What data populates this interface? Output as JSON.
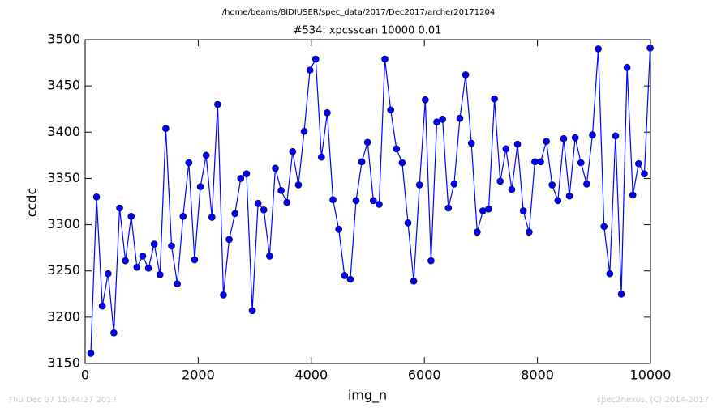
{
  "chart_data": {
    "type": "line",
    "header": "/home/beams/8IDIUSER/spec_data/2017/Dec2017/archer20171204",
    "title": "#534: xpcsscan 10000 0.01",
    "x_label": "img_n",
    "y_label": "ccdc",
    "footer_left": "Thu Dec 07 15:44:27 2017",
    "footer_right": "spec2nexus, (C) 2014-2017",
    "xlim": [
      0,
      10000
    ],
    "xticks": [
      0,
      2000,
      4000,
      6000,
      8000,
      10000
    ],
    "ylim": [
      3150,
      3500
    ],
    "yticks": [
      3150,
      3200,
      3250,
      3300,
      3350,
      3400,
      3450,
      3500
    ],
    "x": [
      100,
      202,
      304,
      406,
      508,
      610,
      712,
      814,
      916,
      1018,
      1120,
      1222,
      1324,
      1426,
      1528,
      1630,
      1732,
      1834,
      1936,
      2038,
      2140,
      2242,
      2344,
      2446,
      2548,
      2650,
      2752,
      2854,
      2956,
      3058,
      3160,
      3262,
      3364,
      3466,
      3568,
      3670,
      3772,
      3874,
      3976,
      4078,
      4180,
      4282,
      4384,
      4486,
      4588,
      4690,
      4792,
      4894,
      4996,
      5098,
      5200,
      5302,
      5404,
      5506,
      5608,
      5710,
      5812,
      5914,
      6016,
      6118,
      6220,
      6322,
      6424,
      6526,
      6628,
      6730,
      6832,
      6934,
      7036,
      7138,
      7240,
      7342,
      7444,
      7546,
      7648,
      7750,
      7852,
      7954,
      8056,
      8158,
      8260,
      8362,
      8464,
      8566,
      8668,
      8770,
      8872,
      8974,
      9076,
      9178,
      9280,
      9382,
      9484,
      9586,
      9688,
      9790,
      9892,
      9994
    ],
    "series": [
      {
        "color": "#0000ff",
        "values": [
          3161,
          3330,
          3212,
          3247,
          3183,
          3318,
          3261,
          3309,
          3254,
          3266,
          3253,
          3279,
          3246,
          3404,
          3277,
          3236,
          3309,
          3367,
          3262,
          3341,
          3375,
          3308,
          3430,
          3224,
          3284,
          3312,
          3350,
          3355,
          3207,
          3323,
          3316,
          3266,
          3361,
          3337,
          3324,
          3379,
          3343,
          3401,
          3467,
          3479,
          3373,
          3421,
          3327,
          3295,
          3245,
          3241,
          3326,
          3368,
          3389,
          3326,
          3322,
          3479,
          3424,
          3382,
          3367,
          3302,
          3239,
          3343,
          3435,
          3261,
          3411,
          3414,
          3318,
          3344,
          3415,
          3462,
          3388,
          3292,
          3315,
          3317,
          3436,
          3347,
          3382,
          3338,
          3387,
          3315,
          3292,
          3368,
          3368,
          3390,
          3343,
          3326,
          3393,
          3331,
          3394,
          3367,
          3344,
          3397,
          3490,
          3298,
          3247,
          3396,
          3225,
          3470,
          3332,
          3366,
          3355,
          3491
        ]
      }
    ]
  }
}
